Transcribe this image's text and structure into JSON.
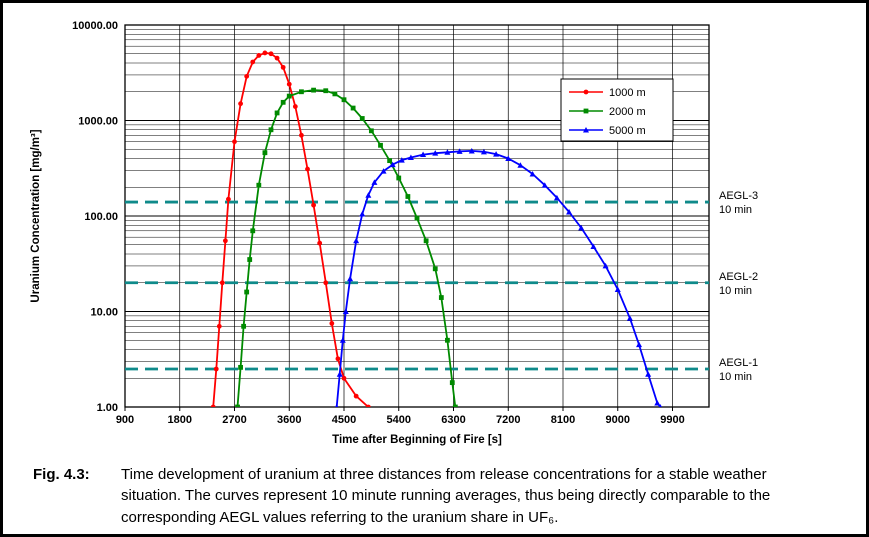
{
  "figure": {
    "label": "Fig. 4.3:",
    "caption": "Time development of uranium at three distances from release concentrations for a stable weather situation. The curves represent 10 minute running averages, thus being directly comparable to the corresponding AEGL values referring to the uranium share in UF₆."
  },
  "chart_data": {
    "type": "line",
    "title": "",
    "xlabel": "Time after Beginning of Fire [s]",
    "ylabel": "Uranium Concentration [mg/m³]",
    "y_scale": "log",
    "grid": true,
    "legend_position": "top-right",
    "xlim": [
      900,
      10500
    ],
    "ylim": [
      1,
      10000
    ],
    "x_ticks": [
      900,
      1800,
      2700,
      3600,
      4500,
      5400,
      6300,
      7200,
      8100,
      9000,
      9900
    ],
    "y_tick_values": [
      1,
      10,
      100,
      1000,
      10000
    ],
    "y_tick_labels": [
      "1.00",
      "10.00",
      "100.00",
      "1000.00",
      "10000.00"
    ],
    "series": [
      {
        "name": "1000 m",
        "color": "#ff0000",
        "marker": "circle",
        "points": [
          [
            2350,
            1.0
          ],
          [
            2400,
            2.5
          ],
          [
            2450,
            7
          ],
          [
            2500,
            20
          ],
          [
            2550,
            55
          ],
          [
            2600,
            150
          ],
          [
            2700,
            600
          ],
          [
            2800,
            1500
          ],
          [
            2900,
            2900
          ],
          [
            3000,
            4100
          ],
          [
            3100,
            4800
          ],
          [
            3200,
            5100
          ],
          [
            3300,
            5000
          ],
          [
            3400,
            4500
          ],
          [
            3500,
            3600
          ],
          [
            3600,
            2400
          ],
          [
            3700,
            1400
          ],
          [
            3800,
            700
          ],
          [
            3900,
            310
          ],
          [
            4000,
            130
          ],
          [
            4100,
            52
          ],
          [
            4200,
            20
          ],
          [
            4300,
            7.5
          ],
          [
            4400,
            3.2
          ],
          [
            4500,
            2.0
          ],
          [
            4700,
            1.3
          ],
          [
            4900,
            1.0
          ]
        ]
      },
      {
        "name": "2000 m",
        "color": "#008a00",
        "marker": "square",
        "points": [
          [
            2750,
            1.0
          ],
          [
            2800,
            2.6
          ],
          [
            2850,
            7
          ],
          [
            2900,
            16
          ],
          [
            2950,
            35
          ],
          [
            3000,
            70
          ],
          [
            3100,
            210
          ],
          [
            3200,
            460
          ],
          [
            3300,
            800
          ],
          [
            3400,
            1200
          ],
          [
            3500,
            1550
          ],
          [
            3600,
            1800
          ],
          [
            3800,
            2000
          ],
          [
            4000,
            2080
          ],
          [
            4200,
            2050
          ],
          [
            4350,
            1900
          ],
          [
            4500,
            1650
          ],
          [
            4650,
            1350
          ],
          [
            4800,
            1050
          ],
          [
            4950,
            780
          ],
          [
            5100,
            550
          ],
          [
            5250,
            380
          ],
          [
            5400,
            250
          ],
          [
            5550,
            160
          ],
          [
            5700,
            95
          ],
          [
            5850,
            55
          ],
          [
            6000,
            28
          ],
          [
            6100,
            14
          ],
          [
            6200,
            5
          ],
          [
            6280,
            1.8
          ],
          [
            6330,
            1.0
          ]
        ]
      },
      {
        "name": "5000 m",
        "color": "#0000ff",
        "marker": "triangle",
        "points": [
          [
            4380,
            1.0
          ],
          [
            4430,
            2.2
          ],
          [
            4480,
            5
          ],
          [
            4530,
            10
          ],
          [
            4600,
            22
          ],
          [
            4700,
            55
          ],
          [
            4800,
            105
          ],
          [
            4900,
            165
          ],
          [
            5000,
            225
          ],
          [
            5150,
            295
          ],
          [
            5300,
            345
          ],
          [
            5450,
            385
          ],
          [
            5600,
            410
          ],
          [
            5800,
            440
          ],
          [
            6000,
            455
          ],
          [
            6200,
            465
          ],
          [
            6400,
            475
          ],
          [
            6600,
            480
          ],
          [
            6800,
            470
          ],
          [
            7000,
            445
          ],
          [
            7200,
            400
          ],
          [
            7400,
            340
          ],
          [
            7600,
            275
          ],
          [
            7800,
            210
          ],
          [
            8000,
            155
          ],
          [
            8200,
            110
          ],
          [
            8400,
            75
          ],
          [
            8600,
            48
          ],
          [
            8800,
            30
          ],
          [
            9000,
            17
          ],
          [
            9200,
            8.5
          ],
          [
            9350,
            4.5
          ],
          [
            9500,
            2.2
          ],
          [
            9650,
            1.1
          ],
          [
            9700,
            1.0
          ]
        ]
      }
    ],
    "reference_lines": [
      {
        "label": "AEGL-3",
        "sublabel": "10 min",
        "value": 140,
        "color": "#0f8a8a"
      },
      {
        "label": "AEGL-2",
        "sublabel": "10 min",
        "value": 20,
        "color": "#0f8a8a"
      },
      {
        "label": "AEGL-1",
        "sublabel": "10 min",
        "value": 2.5,
        "color": "#0f8a8a"
      }
    ]
  }
}
